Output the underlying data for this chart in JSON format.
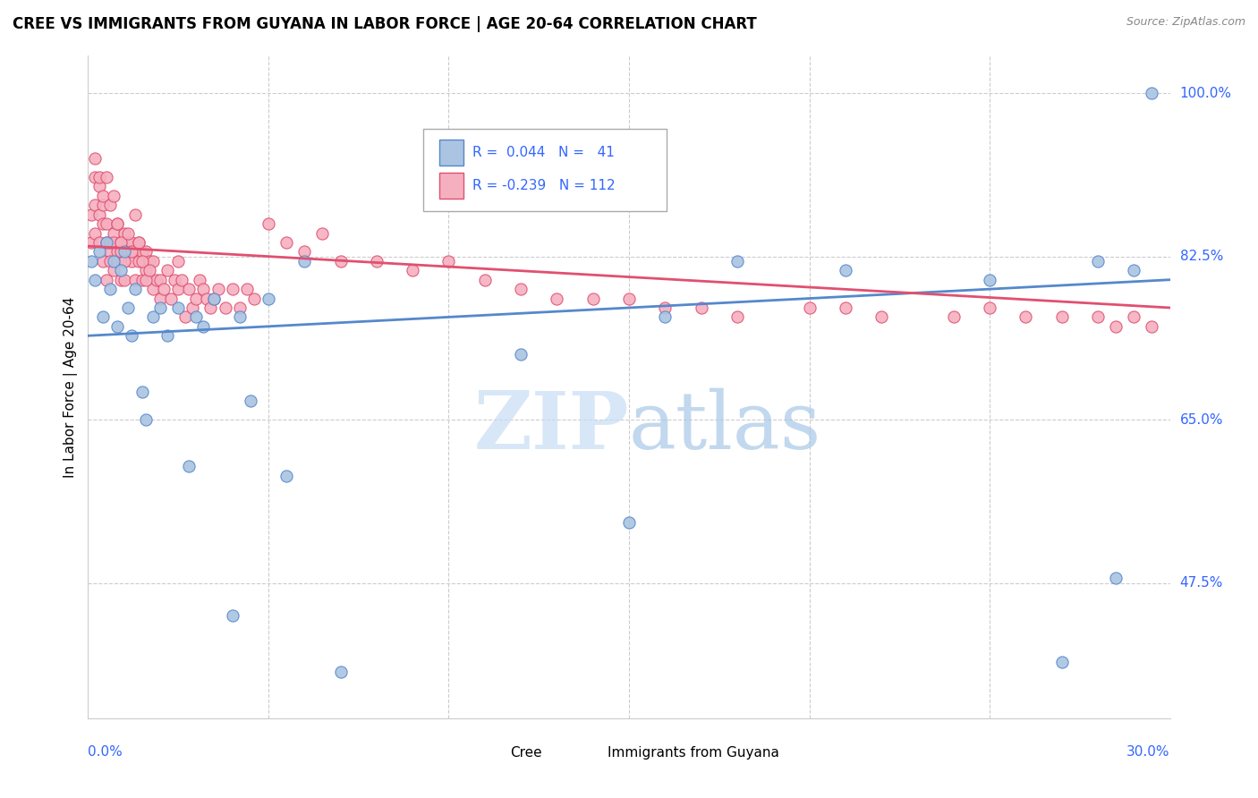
{
  "title": "CREE VS IMMIGRANTS FROM GUYANA IN LABOR FORCE | AGE 20-64 CORRELATION CHART",
  "source": "Source: ZipAtlas.com",
  "ylabel": "In Labor Force | Age 20-64",
  "xmin": 0.0,
  "xmax": 0.3,
  "ymin": 0.33,
  "ymax": 1.04,
  "watermark_zip": "ZIP",
  "watermark_atlas": "atlas",
  "cree_color": "#aac4e2",
  "cree_edge_color": "#5588cc",
  "guyana_color": "#f5b0c0",
  "guyana_edge_color": "#e05070",
  "cree_line_color": "#5588cc",
  "guyana_line_color": "#e05070",
  "cree_line": [
    0.0,
    0.3,
    0.74,
    0.8
  ],
  "guyana_line": [
    0.0,
    0.3,
    0.836,
    0.77
  ],
  "ytick_vals": [
    0.475,
    0.65,
    0.825,
    1.0
  ],
  "ytick_labels": [
    "47.5%",
    "65.0%",
    "82.5%",
    "100.0%"
  ],
  "xtick_vals": [
    0.05,
    0.1,
    0.15,
    0.2,
    0.25
  ],
  "cree_x": [
    0.001,
    0.002,
    0.003,
    0.004,
    0.005,
    0.006,
    0.007,
    0.008,
    0.009,
    0.01,
    0.011,
    0.012,
    0.013,
    0.015,
    0.016,
    0.018,
    0.02,
    0.022,
    0.025,
    0.028,
    0.03,
    0.032,
    0.035,
    0.04,
    0.042,
    0.045,
    0.05,
    0.055,
    0.06,
    0.07,
    0.12,
    0.15,
    0.16,
    0.18,
    0.21,
    0.25,
    0.27,
    0.28,
    0.285,
    0.29,
    0.295
  ],
  "cree_y": [
    0.82,
    0.8,
    0.83,
    0.76,
    0.84,
    0.79,
    0.82,
    0.75,
    0.81,
    0.83,
    0.77,
    0.74,
    0.79,
    0.68,
    0.65,
    0.76,
    0.77,
    0.74,
    0.77,
    0.6,
    0.76,
    0.75,
    0.78,
    0.44,
    0.76,
    0.67,
    0.78,
    0.59,
    0.82,
    0.38,
    0.72,
    0.54,
    0.76,
    0.82,
    0.81,
    0.8,
    0.39,
    0.82,
    0.48,
    0.81,
    1.0
  ],
  "guyana_x": [
    0.001,
    0.001,
    0.002,
    0.002,
    0.002,
    0.003,
    0.003,
    0.003,
    0.004,
    0.004,
    0.004,
    0.005,
    0.005,
    0.005,
    0.006,
    0.006,
    0.006,
    0.007,
    0.007,
    0.007,
    0.008,
    0.008,
    0.008,
    0.009,
    0.009,
    0.009,
    0.01,
    0.01,
    0.01,
    0.011,
    0.011,
    0.012,
    0.012,
    0.013,
    0.013,
    0.014,
    0.014,
    0.015,
    0.015,
    0.016,
    0.016,
    0.017,
    0.018,
    0.018,
    0.019,
    0.02,
    0.02,
    0.021,
    0.022,
    0.023,
    0.024,
    0.025,
    0.025,
    0.026,
    0.027,
    0.028,
    0.029,
    0.03,
    0.031,
    0.032,
    0.033,
    0.034,
    0.035,
    0.036,
    0.038,
    0.04,
    0.042,
    0.044,
    0.046,
    0.05,
    0.055,
    0.06,
    0.065,
    0.07,
    0.08,
    0.09,
    0.1,
    0.11,
    0.12,
    0.13,
    0.14,
    0.15,
    0.16,
    0.17,
    0.18,
    0.2,
    0.21,
    0.22,
    0.24,
    0.25,
    0.26,
    0.27,
    0.28,
    0.285,
    0.29,
    0.295,
    0.002,
    0.003,
    0.004,
    0.005,
    0.006,
    0.007,
    0.008,
    0.009,
    0.01,
    0.011,
    0.012,
    0.013,
    0.014,
    0.015,
    0.016,
    0.017
  ],
  "guyana_y": [
    0.84,
    0.87,
    0.88,
    0.91,
    0.85,
    0.87,
    0.9,
    0.84,
    0.86,
    0.82,
    0.88,
    0.84,
    0.8,
    0.86,
    0.83,
    0.82,
    0.84,
    0.85,
    0.81,
    0.84,
    0.83,
    0.86,
    0.82,
    0.84,
    0.8,
    0.83,
    0.82,
    0.85,
    0.8,
    0.84,
    0.83,
    0.82,
    0.84,
    0.8,
    0.83,
    0.82,
    0.84,
    0.8,
    0.83,
    0.81,
    0.83,
    0.82,
    0.79,
    0.82,
    0.8,
    0.78,
    0.8,
    0.79,
    0.81,
    0.78,
    0.8,
    0.79,
    0.82,
    0.8,
    0.76,
    0.79,
    0.77,
    0.78,
    0.8,
    0.79,
    0.78,
    0.77,
    0.78,
    0.79,
    0.77,
    0.79,
    0.77,
    0.79,
    0.78,
    0.86,
    0.84,
    0.83,
    0.85,
    0.82,
    0.82,
    0.81,
    0.82,
    0.8,
    0.79,
    0.78,
    0.78,
    0.78,
    0.77,
    0.77,
    0.76,
    0.77,
    0.77,
    0.76,
    0.76,
    0.77,
    0.76,
    0.76,
    0.76,
    0.75,
    0.76,
    0.75,
    0.93,
    0.91,
    0.89,
    0.91,
    0.88,
    0.89,
    0.86,
    0.84,
    0.82,
    0.85,
    0.83,
    0.87,
    0.84,
    0.82,
    0.8,
    0.81
  ]
}
